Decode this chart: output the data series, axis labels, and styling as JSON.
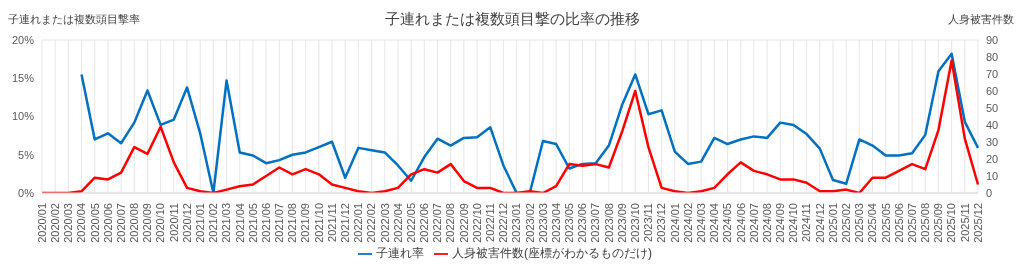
{
  "chart_data": {
    "type": "line",
    "title": "子連れまたは複数頭目撃の比率の推移",
    "ylabel": "子連れまたは複数頭目撃率",
    "y2label": "人身被害件数",
    "categories": [
      "2020/01",
      "2020/02",
      "2020/03",
      "2020/04",
      "2020/05",
      "2020/06",
      "2020/07",
      "2020/08",
      "2020/09",
      "2020/10",
      "2020/11",
      "2020/12",
      "2021/01",
      "2021/02",
      "2021/03",
      "2021/04",
      "2021/05",
      "2021/06",
      "2021/07",
      "2021/08",
      "2021/09",
      "2021/10",
      "2021/11",
      "2021/12",
      "2022/01",
      "2022/02",
      "2022/03",
      "2022/04",
      "2022/05",
      "2022/06",
      "2022/07",
      "2022/08",
      "2022/09",
      "2022/10",
      "2022/11",
      "2022/12",
      "2023/01",
      "2023/02",
      "2023/03",
      "2023/04",
      "2023/05",
      "2023/06",
      "2023/07",
      "2023/08",
      "2023/09",
      "2023/10",
      "2023/11",
      "2023/12",
      "2024/01",
      "2024/02",
      "2024/03",
      "2024/04",
      "2024/05",
      "2024/06",
      "2024/07",
      "2024/08",
      "2024/09",
      "2024/10",
      "2024/11",
      "2024/12",
      "2025/01",
      "2025/02",
      "2025/03",
      "2025/04",
      "2025/05",
      "2025/06",
      "2025/07",
      "2025/08",
      "2025/09",
      "2025/10",
      "2025/11",
      "2025/12"
    ],
    "series": [
      {
        "name": "子連れ率",
        "color": "#0070c0",
        "axis": "y",
        "values": [
          null,
          null,
          null,
          15.5,
          7.0,
          7.8,
          6.5,
          9.2,
          13.4,
          8.9,
          9.6,
          13.8,
          7.8,
          0,
          14.7,
          5.3,
          4.9,
          3.9,
          4.3,
          5.0,
          5.3,
          6.0,
          6.7,
          2.0,
          5.9,
          5.6,
          5.3,
          3.6,
          1.6,
          4.7,
          7.1,
          6.2,
          7.2,
          7.3,
          8.6,
          3.6,
          0,
          0,
          6.8,
          6.4,
          3.2,
          3.8,
          3.9,
          6.2,
          11.5,
          15.5,
          10.3,
          10.8,
          5.4,
          3.8,
          4.1,
          7.2,
          6.4,
          7.0,
          7.4,
          7.2,
          9.2,
          8.9,
          7.7,
          5.8,
          1.7,
          1.2,
          7.0,
          6.2,
          4.9,
          4.9,
          5.2,
          7.6,
          15.9,
          18.2,
          9.3,
          5.9
        ]
      },
      {
        "name": "人身被害件数(座標がわかるものだけ)",
        "color": "#ff0000",
        "axis": "y2",
        "values": [
          0,
          0,
          0,
          1,
          9,
          8,
          12,
          27,
          23,
          39,
          18,
          3,
          1,
          0,
          2,
          4,
          5,
          10,
          15,
          11,
          14,
          11,
          5,
          3,
          1,
          0,
          1,
          3,
          11,
          14,
          12,
          17,
          7,
          3,
          3,
          0,
          0,
          1,
          0,
          4,
          17,
          16,
          17,
          15,
          36,
          60,
          27,
          3,
          1,
          0,
          1,
          3,
          11,
          18,
          13,
          11,
          8,
          8,
          6,
          1,
          1,
          2,
          0,
          9,
          9,
          13,
          17,
          14,
          37,
          78,
          32,
          5
        ]
      }
    ],
    "ylim": [
      0,
      20
    ],
    "yticks": [
      {
        "value": 0,
        "label": "0%"
      },
      {
        "value": 5,
        "label": "5%"
      },
      {
        "value": 10,
        "label": "10%"
      },
      {
        "value": 15,
        "label": "15%"
      },
      {
        "value": 20,
        "label": "20%"
      }
    ],
    "y2lim": [
      0,
      90
    ],
    "y2ticks": [
      0,
      10,
      20,
      30,
      40,
      50,
      60,
      70,
      80,
      90
    ],
    "grid": true,
    "legend": "bottom",
    "marker": "none"
  }
}
